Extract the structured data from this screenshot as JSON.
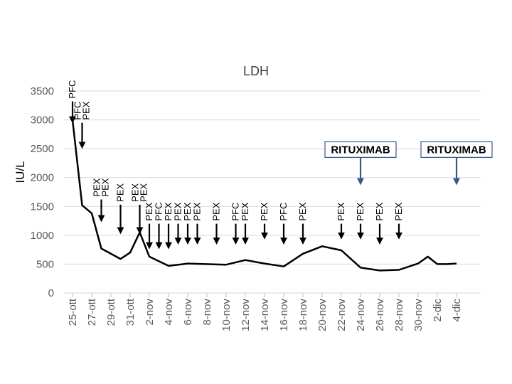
{
  "chart_data": {
    "type": "line",
    "title": "LDH",
    "ylabel": "IU/L",
    "xlabel": "",
    "ylim": [
      0,
      3500
    ],
    "yticks": [
      0,
      500,
      1000,
      1500,
      2000,
      2500,
      3000,
      3500
    ],
    "grid": true,
    "xtick_labels": [
      "25-ott",
      "27-ott",
      "29-ott",
      "31-ott",
      "2-nov",
      "4-nov",
      "6-nov",
      "8-nov",
      "10-nov",
      "12-nov",
      "14-nov",
      "16-nov",
      "18-nov",
      "20-nov",
      "22-nov",
      "24-nov",
      "26-nov",
      "28-nov",
      "30-nov",
      "2-dic",
      "4-dic"
    ],
    "series": [
      {
        "values": [
          {
            "d": 0,
            "v": 3000
          },
          {
            "d": 1,
            "v": 1520
          },
          {
            "d": 2,
            "v": 1380
          },
          {
            "d": 3,
            "v": 770
          },
          {
            "d": 5,
            "v": 590
          },
          {
            "d": 6,
            "v": 700
          },
          {
            "d": 7,
            "v": 1050
          },
          {
            "d": 8,
            "v": 630
          },
          {
            "d": 10,
            "v": 470
          },
          {
            "d": 12,
            "v": 510
          },
          {
            "d": 16,
            "v": 490
          },
          {
            "d": 18,
            "v": 570
          },
          {
            "d": 20,
            "v": 510
          },
          {
            "d": 22,
            "v": 460
          },
          {
            "d": 24,
            "v": 680
          },
          {
            "d": 26,
            "v": 810
          },
          {
            "d": 28,
            "v": 740
          },
          {
            "d": 30,
            "v": 440
          },
          {
            "d": 32,
            "v": 390
          },
          {
            "d": 34,
            "v": 400
          },
          {
            "d": 36,
            "v": 510
          },
          {
            "d": 37,
            "v": 630
          },
          {
            "d": 38,
            "v": 500
          },
          {
            "d": 39,
            "v": 500
          },
          {
            "d": 40,
            "v": 510
          }
        ]
      }
    ],
    "annotations": [
      {
        "d": 0,
        "labels": [
          "PFC"
        ],
        "arrow_top": 3320,
        "arrow_tip": 2950
      },
      {
        "d": 1,
        "labels": [
          "PFC",
          "PEX"
        ],
        "arrow_top": 2950,
        "arrow_tip": 2510
      },
      {
        "d": 3,
        "labels": [
          "PEX",
          "PEX"
        ],
        "arrow_top": 1620,
        "arrow_tip": 1240
      },
      {
        "d": 5,
        "labels": [
          "PEX"
        ],
        "arrow_top": 1530,
        "arrow_tip": 1030
      },
      {
        "d": 7,
        "labels": [
          "PEX",
          "PEX"
        ],
        "arrow_top": 1530,
        "arrow_tip": 1030
      },
      {
        "d": 8,
        "labels": [
          "PEX"
        ],
        "arrow_top": 1200,
        "arrow_tip": 770
      },
      {
        "d": 9,
        "labels": [
          "PFC"
        ],
        "arrow_top": 1200,
        "arrow_tip": 770
      },
      {
        "d": 10,
        "labels": [
          "PEX"
        ],
        "arrow_top": 1200,
        "arrow_tip": 770
      },
      {
        "d": 11,
        "labels": [
          "PEX"
        ],
        "arrow_top": 1200,
        "arrow_tip": 850
      },
      {
        "d": 12,
        "labels": [
          "PEX"
        ],
        "arrow_top": 1200,
        "arrow_tip": 850
      },
      {
        "d": 13,
        "labels": [
          "PEX"
        ],
        "arrow_top": 1200,
        "arrow_tip": 850
      },
      {
        "d": 15,
        "labels": [
          "PEX"
        ],
        "arrow_top": 1200,
        "arrow_tip": 850
      },
      {
        "d": 17,
        "labels": [
          "PFC"
        ],
        "arrow_top": 1200,
        "arrow_tip": 850
      },
      {
        "d": 18,
        "labels": [
          "PEX"
        ],
        "arrow_top": 1200,
        "arrow_tip": 850
      },
      {
        "d": 20,
        "labels": [
          "PEX"
        ],
        "arrow_top": 1200,
        "arrow_tip": 940
      },
      {
        "d": 22,
        "labels": [
          "PFC"
        ],
        "arrow_top": 1200,
        "arrow_tip": 850
      },
      {
        "d": 24,
        "labels": [
          "PEX"
        ],
        "arrow_top": 1200,
        "arrow_tip": 850
      },
      {
        "d": 28,
        "labels": [
          "PEX"
        ],
        "arrow_top": 1200,
        "arrow_tip": 940
      },
      {
        "d": 30,
        "labels": [
          "PEX"
        ],
        "arrow_top": 1200,
        "arrow_tip": 940
      },
      {
        "d": 32,
        "labels": [
          "PEX"
        ],
        "arrow_top": 1200,
        "arrow_tip": 850
      },
      {
        "d": 34,
        "labels": [
          "PEX"
        ],
        "arrow_top": 1200,
        "arrow_tip": 940
      }
    ],
    "rituximab": [
      {
        "d": 30,
        "label": "RITUXIMAB",
        "arrow_top": 2300,
        "arrow_tip": 1880
      },
      {
        "d": 40,
        "label": "RITUXIMAB",
        "arrow_top": 2300,
        "arrow_tip": 1880
      }
    ]
  }
}
